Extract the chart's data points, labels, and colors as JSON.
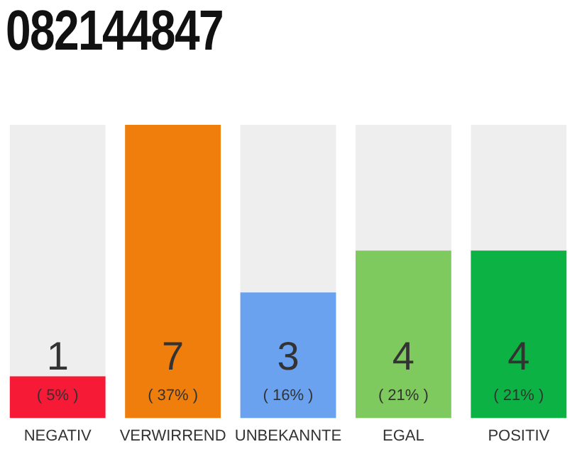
{
  "chart_data": {
    "type": "bar",
    "title": "082144847",
    "categories": [
      "NEGATIV",
      "VERWIRREND",
      "UNBEKANNTE",
      "EGAL",
      "POSITIV"
    ],
    "values": [
      1,
      7,
      3,
      4,
      4
    ],
    "colors": [
      "#f61a36",
      "#f07e0c",
      "#6aa2ef",
      "#7eca5f",
      "#0db244"
    ],
    "data_labels": true,
    "annotations": [
      "( 5% )",
      "( 37% )",
      "( 16% )",
      "( 21% )",
      "( 21% )"
    ],
    "grid": false,
    "legend": false
  }
}
